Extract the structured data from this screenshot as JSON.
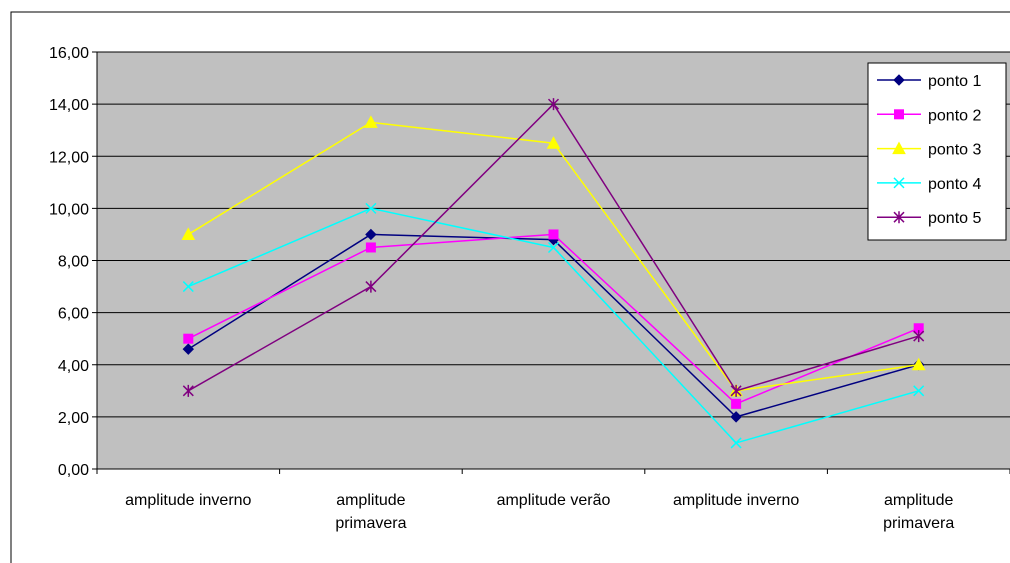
{
  "chart_data": {
    "type": "line",
    "title": "",
    "xlabel": "",
    "ylabel": "",
    "categories": [
      [
        "amplitude inverno"
      ],
      [
        "amplitude",
        "primavera"
      ],
      [
        "amplitude verão"
      ],
      [
        "amplitude inverno"
      ],
      [
        "amplitude",
        "primavera"
      ]
    ],
    "ylim": [
      0,
      16
    ],
    "yticks": [
      "0,00",
      "2,00",
      "4,00",
      "6,00",
      "8,00",
      "10,00",
      "12,00",
      "14,00",
      "16,00"
    ],
    "grid": true,
    "plot_background": "#c0c0c0",
    "legend_position": "top-right",
    "series": [
      {
        "name": "ponto 1",
        "color": "#000080",
        "marker": "diamond",
        "values": [
          4.6,
          9.0,
          8.8,
          2.0,
          4.0
        ]
      },
      {
        "name": "ponto 2",
        "color": "#ff00ff",
        "marker": "square",
        "values": [
          5.0,
          8.5,
          9.0,
          2.5,
          5.4
        ]
      },
      {
        "name": "ponto 3",
        "color": "#ffff00",
        "marker": "triangle",
        "values": [
          9.0,
          13.3,
          12.5,
          3.0,
          4.0
        ]
      },
      {
        "name": "ponto 4",
        "color": "#00ffff",
        "marker": "x",
        "values": [
          7.0,
          10.0,
          8.5,
          1.0,
          3.0
        ]
      },
      {
        "name": "ponto 5",
        "color": "#800080",
        "marker": "star",
        "values": [
          3.0,
          7.0,
          14.0,
          3.0,
          5.1
        ]
      }
    ]
  }
}
